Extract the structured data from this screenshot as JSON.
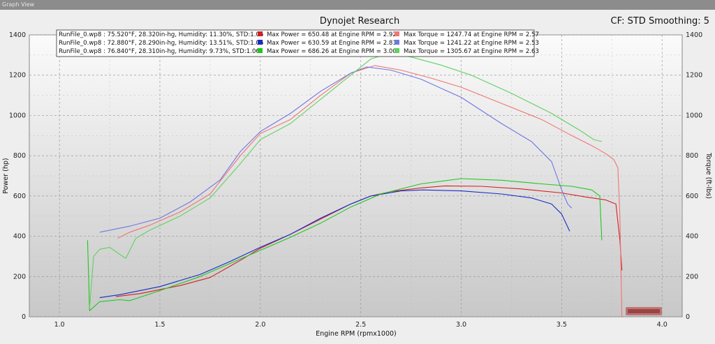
{
  "window": {
    "title": "Graph View"
  },
  "chart_data": {
    "type": "line",
    "title": "Dynojet Research",
    "info": "CF: STD Smoothing: 5",
    "xlabel": "Engine RPM (rpmx1000)",
    "ylabel_left": "Power (hp)",
    "ylabel_right": "Torque (ft-lbs)",
    "xlim": [
      0.85,
      4.1
    ],
    "ylim": [
      0,
      1400
    ],
    "xticks": [
      "1.0",
      "1.5",
      "2.0",
      "2.5",
      "3.0",
      "3.5",
      "4.0"
    ],
    "yticks": [
      "0",
      "200",
      "400",
      "600",
      "800",
      "1000",
      "1200",
      "1400"
    ],
    "grid": true,
    "legend_position": "top",
    "runs": [
      {
        "label": "RunFile_0.wp8 : 75.520°F, 28.320in-hg, Humidity: 11.30%, STD:1.06",
        "power_summary": "Max Power = 650.48 at Engine RPM = 2.92",
        "torque_summary": "Max Torque = 1247.74 at Engine RPM = 2.57",
        "power_color": "#d42020",
        "torque_color": "#f07575"
      },
      {
        "label": "RunFile_0.wp8 : 72.880°F, 28.290in-hg, Humidity: 13.51%, STD:1.06",
        "power_summary": "Max Power = 630.59 at Engine RPM = 2.81",
        "torque_summary": "Max Torque = 1241.22 at Engine RPM = 2.53",
        "power_color": "#1a2bc8",
        "torque_color": "#6f78e0"
      },
      {
        "label": "RunFile_0.wp8 : 76.840°F, 28.310in-hg, Humidity: 9.73%, STD:1.06",
        "power_summary": "Max Power = 686.26 at Engine RPM = 3.00",
        "torque_summary": "Max Torque = 1305.67 at Engine RPM = 2.63",
        "power_color": "#1ec81e",
        "torque_color": "#5fd25f"
      }
    ],
    "series": [
      {
        "kind": "power",
        "run": 0,
        "x": [
          1.28,
          1.4,
          1.6,
          1.75,
          1.9,
          2.0,
          2.15,
          2.3,
          2.45,
          2.55,
          2.65,
          2.8,
          2.92,
          3.1,
          3.3,
          3.5,
          3.62,
          3.72,
          3.77,
          3.79,
          3.8
        ],
        "y": [
          100,
          115,
          155,
          195,
          280,
          340,
          410,
          485,
          560,
          600,
          622,
          640,
          650,
          648,
          635,
          615,
          595,
          580,
          560,
          380,
          230
        ]
      },
      {
        "kind": "torque",
        "run": 0,
        "x": [
          1.29,
          1.35,
          1.45,
          1.6,
          1.75,
          1.9,
          2.0,
          2.15,
          2.3,
          2.45,
          2.57,
          2.7,
          2.85,
          3.0,
          3.2,
          3.4,
          3.55,
          3.65,
          3.72,
          3.76,
          3.78,
          3.79,
          3.8
        ],
        "y": [
          390,
          420,
          455,
          520,
          610,
          800,
          910,
          980,
          1100,
          1210,
          1248,
          1225,
          1185,
          1140,
          1060,
          980,
          900,
          850,
          810,
          780,
          740,
          500,
          0
        ]
      },
      {
        "kind": "power",
        "run": 1,
        "x": [
          1.2,
          1.3,
          1.5,
          1.7,
          1.85,
          2.0,
          2.15,
          2.3,
          2.45,
          2.55,
          2.7,
          2.81,
          3.0,
          3.2,
          3.35,
          3.45,
          3.5,
          3.54
        ],
        "y": [
          95,
          110,
          150,
          210,
          275,
          345,
          410,
          490,
          560,
          600,
          625,
          630,
          625,
          610,
          590,
          560,
          510,
          425
        ]
      },
      {
        "kind": "torque",
        "run": 1,
        "x": [
          1.2,
          1.25,
          1.35,
          1.5,
          1.65,
          1.8,
          1.9,
          2.0,
          2.15,
          2.3,
          2.45,
          2.53,
          2.65,
          2.8,
          3.0,
          3.2,
          3.35,
          3.45,
          3.5,
          3.53,
          3.55
        ],
        "y": [
          420,
          430,
          450,
          490,
          570,
          680,
          820,
          920,
          1010,
          1120,
          1210,
          1241,
          1225,
          1180,
          1090,
          960,
          870,
          770,
          630,
          560,
          540
        ]
      },
      {
        "kind": "power",
        "run": 2,
        "x": [
          1.14,
          1.15,
          1.2,
          1.3,
          1.35,
          1.5,
          1.7,
          1.85,
          2.0,
          2.15,
          2.3,
          2.45,
          2.6,
          2.8,
          3.0,
          3.2,
          3.4,
          3.55,
          3.65,
          3.69,
          3.7
        ],
        "y": [
          380,
          30,
          75,
          85,
          80,
          130,
          200,
          265,
          330,
          395,
          465,
          545,
          610,
          660,
          686,
          678,
          660,
          648,
          630,
          600,
          380
        ]
      },
      {
        "kind": "torque",
        "run": 2,
        "x": [
          1.15,
          1.17,
          1.2,
          1.25,
          1.3,
          1.33,
          1.38,
          1.45,
          1.6,
          1.75,
          1.9,
          2.0,
          2.15,
          2.3,
          2.45,
          2.55,
          2.63,
          2.75,
          2.9,
          3.05,
          3.25,
          3.45,
          3.6,
          3.66,
          3.7
        ],
        "y": [
          45,
          300,
          335,
          345,
          310,
          290,
          390,
          430,
          500,
          590,
          760,
          880,
          960,
          1080,
          1200,
          1280,
          1306,
          1290,
          1250,
          1200,
          1110,
          1010,
          920,
          880,
          870
        ]
      }
    ]
  }
}
